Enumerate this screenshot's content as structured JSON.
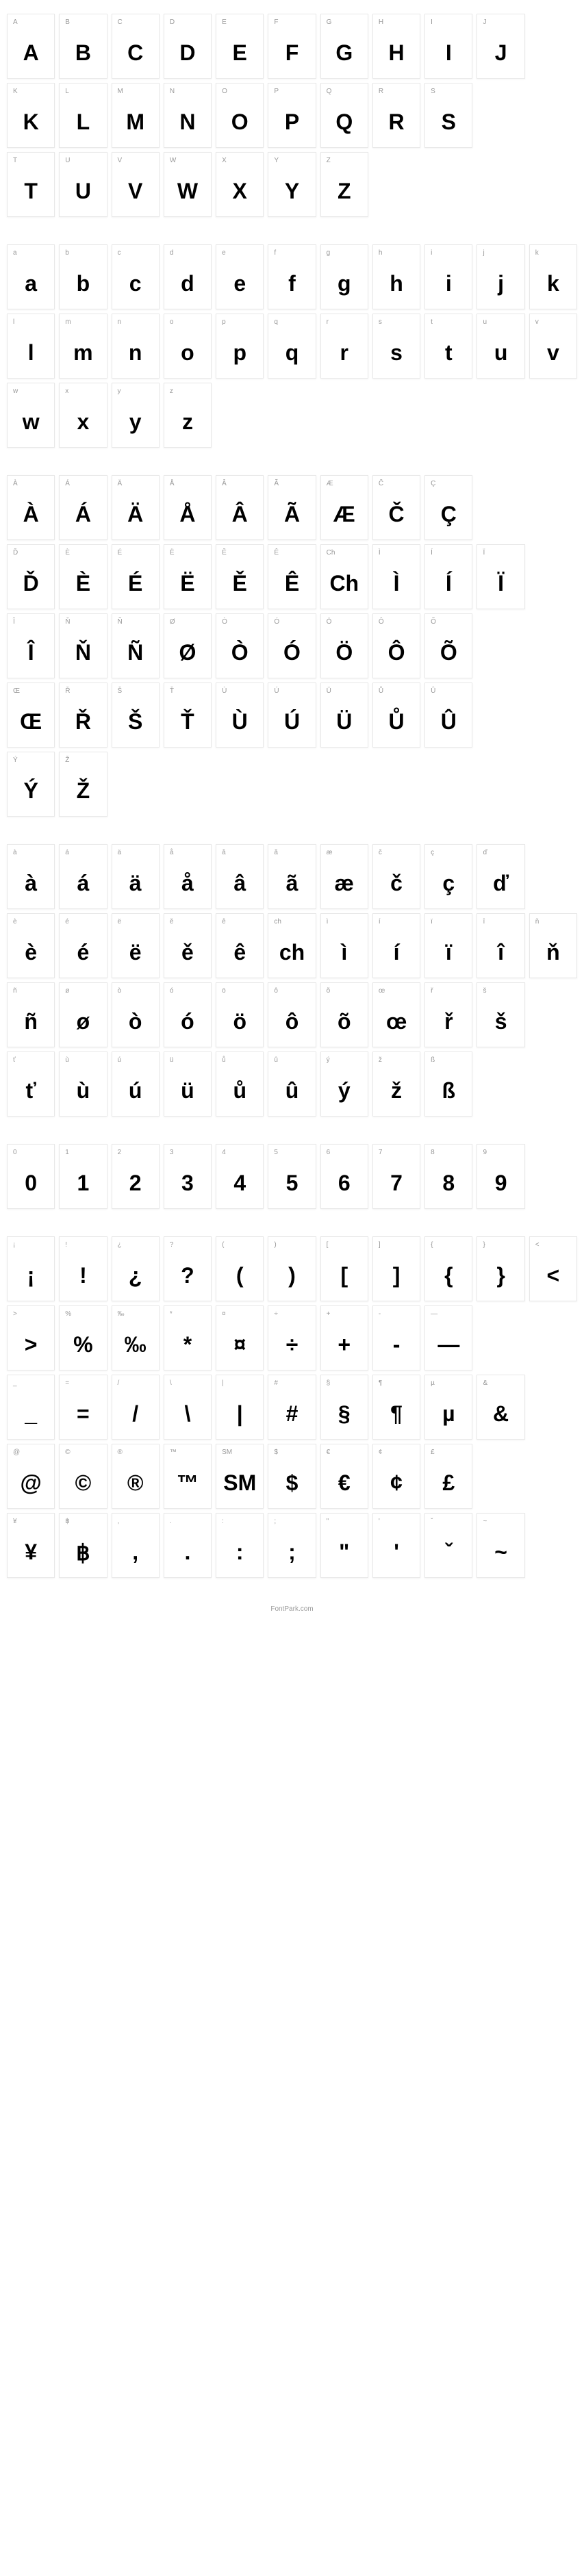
{
  "footer": "FontPark.com",
  "sections": [
    {
      "cells": [
        {
          "label": "A",
          "glyph": "A"
        },
        {
          "label": "B",
          "glyph": "B"
        },
        {
          "label": "C",
          "glyph": "C"
        },
        {
          "label": "D",
          "glyph": "D"
        },
        {
          "label": "E",
          "glyph": "E"
        },
        {
          "label": "F",
          "glyph": "F"
        },
        {
          "label": "G",
          "glyph": "G"
        },
        {
          "label": "H",
          "glyph": "H"
        },
        {
          "label": "I",
          "glyph": "I"
        },
        {
          "label": "J",
          "glyph": "J"
        },
        {
          "empty": true
        },
        {
          "label": "K",
          "glyph": "K"
        },
        {
          "label": "L",
          "glyph": "L"
        },
        {
          "label": "M",
          "glyph": "M"
        },
        {
          "label": "N",
          "glyph": "N"
        },
        {
          "label": "O",
          "glyph": "O"
        },
        {
          "label": "P",
          "glyph": "P"
        },
        {
          "label": "Q",
          "glyph": "Q"
        },
        {
          "label": "R",
          "glyph": "R"
        },
        {
          "label": "S",
          "glyph": "S"
        },
        {
          "empty": true
        },
        {
          "empty": true
        },
        {
          "label": "T",
          "glyph": "T"
        },
        {
          "label": "U",
          "glyph": "U"
        },
        {
          "label": "V",
          "glyph": "V"
        },
        {
          "label": "W",
          "glyph": "W"
        },
        {
          "label": "X",
          "glyph": "X"
        },
        {
          "label": "Y",
          "glyph": "Y"
        },
        {
          "label": "Z",
          "glyph": "Z"
        },
        {
          "empty": true
        },
        {
          "empty": true
        },
        {
          "empty": true
        },
        {
          "empty": true
        }
      ]
    },
    {
      "cells": [
        {
          "label": "a",
          "glyph": "a"
        },
        {
          "label": "b",
          "glyph": "b"
        },
        {
          "label": "c",
          "glyph": "c"
        },
        {
          "label": "d",
          "glyph": "d"
        },
        {
          "label": "e",
          "glyph": "e"
        },
        {
          "label": "f",
          "glyph": "f"
        },
        {
          "label": "g",
          "glyph": "g"
        },
        {
          "label": "h",
          "glyph": "h"
        },
        {
          "label": "i",
          "glyph": "i"
        },
        {
          "label": "j",
          "glyph": "j"
        },
        {
          "label": "k",
          "glyph": "k"
        },
        {
          "label": "l",
          "glyph": "l"
        },
        {
          "label": "m",
          "glyph": "m"
        },
        {
          "label": "n",
          "glyph": "n"
        },
        {
          "label": "o",
          "glyph": "o"
        },
        {
          "label": "p",
          "glyph": "p"
        },
        {
          "label": "q",
          "glyph": "q"
        },
        {
          "label": "r",
          "glyph": "r"
        },
        {
          "label": "s",
          "glyph": "s"
        },
        {
          "label": "t",
          "glyph": "t"
        },
        {
          "label": "u",
          "glyph": "u"
        },
        {
          "label": "v",
          "glyph": "v"
        },
        {
          "label": "w",
          "glyph": "w"
        },
        {
          "label": "x",
          "glyph": "x"
        },
        {
          "label": "y",
          "glyph": "y"
        },
        {
          "label": "z",
          "glyph": "z"
        },
        {
          "empty": true
        },
        {
          "empty": true
        },
        {
          "empty": true
        },
        {
          "empty": true
        },
        {
          "empty": true
        },
        {
          "empty": true
        },
        {
          "empty": true
        }
      ]
    },
    {
      "cells": [
        {
          "label": "À",
          "glyph": "À"
        },
        {
          "label": "Á",
          "glyph": "Á"
        },
        {
          "label": "Ä",
          "glyph": "Ä"
        },
        {
          "label": "Å",
          "glyph": "Å"
        },
        {
          "label": "Â",
          "glyph": "Â"
        },
        {
          "label": "Ã",
          "glyph": "Ã"
        },
        {
          "label": "Æ",
          "glyph": "Æ"
        },
        {
          "label": "Č",
          "glyph": "Č"
        },
        {
          "label": "Ç",
          "glyph": "Ç"
        },
        {
          "empty": true
        },
        {
          "empty": true
        },
        {
          "label": "Ď",
          "glyph": "Ď"
        },
        {
          "label": "È",
          "glyph": "È"
        },
        {
          "label": "É",
          "glyph": "É"
        },
        {
          "label": "Ë",
          "glyph": "Ë"
        },
        {
          "label": "Ě",
          "glyph": "Ě"
        },
        {
          "label": "Ê",
          "glyph": "Ê"
        },
        {
          "label": "Ch",
          "glyph": "Ch"
        },
        {
          "label": "Ì",
          "glyph": "Ì"
        },
        {
          "label": "Í",
          "glyph": "Í"
        },
        {
          "label": "Ï",
          "glyph": "Ï"
        },
        {
          "empty": true
        },
        {
          "label": "Î",
          "glyph": "Î"
        },
        {
          "label": "Ň",
          "glyph": "Ň"
        },
        {
          "label": "Ñ",
          "glyph": "Ñ"
        },
        {
          "label": "Ø",
          "glyph": "Ø"
        },
        {
          "label": "Ò",
          "glyph": "Ò"
        },
        {
          "label": "Ó",
          "glyph": "Ó"
        },
        {
          "label": "Ö",
          "glyph": "Ö"
        },
        {
          "label": "Ô",
          "glyph": "Ô"
        },
        {
          "label": "Õ",
          "glyph": "Õ"
        },
        {
          "empty": true
        },
        {
          "empty": true
        },
        {
          "label": "Œ",
          "glyph": "Œ"
        },
        {
          "label": "Ř",
          "glyph": "Ř"
        },
        {
          "label": "Š",
          "glyph": "Š"
        },
        {
          "label": "Ť",
          "glyph": "Ť"
        },
        {
          "label": "Ù",
          "glyph": "Ù"
        },
        {
          "label": "Ú",
          "glyph": "Ú"
        },
        {
          "label": "Ü",
          "glyph": "Ü"
        },
        {
          "label": "Ů",
          "glyph": "Ů"
        },
        {
          "label": "Û",
          "glyph": "Û"
        },
        {
          "empty": true
        },
        {
          "empty": true
        },
        {
          "label": "Ý",
          "glyph": "Ý"
        },
        {
          "label": "Ž",
          "glyph": "Ž"
        },
        {
          "empty": true
        },
        {
          "empty": true
        },
        {
          "empty": true
        },
        {
          "empty": true
        },
        {
          "empty": true
        },
        {
          "empty": true
        },
        {
          "empty": true
        },
        {
          "empty": true
        },
        {
          "empty": true
        }
      ]
    },
    {
      "cells": [
        {
          "label": "à",
          "glyph": "à"
        },
        {
          "label": "á",
          "glyph": "á"
        },
        {
          "label": "ä",
          "glyph": "ä"
        },
        {
          "label": "å",
          "glyph": "å"
        },
        {
          "label": "â",
          "glyph": "â"
        },
        {
          "label": "ã",
          "glyph": "ã"
        },
        {
          "label": "æ",
          "glyph": "æ"
        },
        {
          "label": "č",
          "glyph": "č"
        },
        {
          "label": "ç",
          "glyph": "ç"
        },
        {
          "label": "ď",
          "glyph": "ď"
        },
        {
          "empty": true
        },
        {
          "label": "è",
          "glyph": "è"
        },
        {
          "label": "é",
          "glyph": "é"
        },
        {
          "label": "ë",
          "glyph": "ë"
        },
        {
          "label": "ě",
          "glyph": "ě"
        },
        {
          "label": "ê",
          "glyph": "ê"
        },
        {
          "label": "ch",
          "glyph": "ch"
        },
        {
          "label": "ì",
          "glyph": "ì"
        },
        {
          "label": "í",
          "glyph": "í"
        },
        {
          "label": "ï",
          "glyph": "ï"
        },
        {
          "label": "î",
          "glyph": "î"
        },
        {
          "label": "ň",
          "glyph": "ň"
        },
        {
          "label": "ñ",
          "glyph": "ñ"
        },
        {
          "label": "ø",
          "glyph": "ø"
        },
        {
          "label": "ò",
          "glyph": "ò"
        },
        {
          "label": "ó",
          "glyph": "ó"
        },
        {
          "label": "ö",
          "glyph": "ö"
        },
        {
          "label": "ô",
          "glyph": "ô"
        },
        {
          "label": "õ",
          "glyph": "õ"
        },
        {
          "label": "œ",
          "glyph": "œ"
        },
        {
          "label": "ř",
          "glyph": "ř"
        },
        {
          "label": "š",
          "glyph": "š"
        },
        {
          "empty": true
        },
        {
          "label": "ť",
          "glyph": "ť"
        },
        {
          "label": "ù",
          "glyph": "ù"
        },
        {
          "label": "ú",
          "glyph": "ú"
        },
        {
          "label": "ü",
          "glyph": "ü"
        },
        {
          "label": "ů",
          "glyph": "ů"
        },
        {
          "label": "û",
          "glyph": "û"
        },
        {
          "label": "ý",
          "glyph": "ý"
        },
        {
          "label": "ž",
          "glyph": "ž"
        },
        {
          "label": "ß",
          "glyph": "ß"
        },
        {
          "empty": true
        },
        {
          "empty": true
        }
      ]
    },
    {
      "cells": [
        {
          "label": "0",
          "glyph": "0"
        },
        {
          "label": "1",
          "glyph": "1"
        },
        {
          "label": "2",
          "glyph": "2"
        },
        {
          "label": "3",
          "glyph": "3"
        },
        {
          "label": "4",
          "glyph": "4"
        },
        {
          "label": "5",
          "glyph": "5"
        },
        {
          "label": "6",
          "glyph": "6"
        },
        {
          "label": "7",
          "glyph": "7"
        },
        {
          "label": "8",
          "glyph": "8"
        },
        {
          "label": "9",
          "glyph": "9"
        },
        {
          "empty": true
        }
      ]
    },
    {
      "cells": [
        {
          "label": "¡",
          "glyph": "¡"
        },
        {
          "label": "!",
          "glyph": "!"
        },
        {
          "label": "¿",
          "glyph": "¿"
        },
        {
          "label": "?",
          "glyph": "?"
        },
        {
          "label": "(",
          "glyph": "("
        },
        {
          "label": ")",
          "glyph": ")"
        },
        {
          "label": "[",
          "glyph": "["
        },
        {
          "label": "]",
          "glyph": "]"
        },
        {
          "label": "{",
          "glyph": "{"
        },
        {
          "label": "}",
          "glyph": "}"
        },
        {
          "label": "<",
          "glyph": "<"
        },
        {
          "label": ">",
          "glyph": ">"
        },
        {
          "label": "%",
          "glyph": "%"
        },
        {
          "label": "‰",
          "glyph": "‰"
        },
        {
          "label": "*",
          "glyph": "*"
        },
        {
          "label": "¤",
          "glyph": "¤"
        },
        {
          "label": "÷",
          "glyph": "÷"
        },
        {
          "label": "+",
          "glyph": "+"
        },
        {
          "label": "-",
          "glyph": "-"
        },
        {
          "label": "—",
          "glyph": "—"
        },
        {
          "empty": true
        },
        {
          "empty": true
        },
        {
          "label": "_",
          "glyph": "_"
        },
        {
          "label": "=",
          "glyph": "="
        },
        {
          "label": "/",
          "glyph": "/"
        },
        {
          "label": "\\",
          "glyph": "\\"
        },
        {
          "label": "|",
          "glyph": "|"
        },
        {
          "label": "#",
          "glyph": "#"
        },
        {
          "label": "§",
          "glyph": "§"
        },
        {
          "label": "¶",
          "glyph": "¶"
        },
        {
          "label": "µ",
          "glyph": "µ"
        },
        {
          "label": "&",
          "glyph": "&"
        },
        {
          "empty": true
        },
        {
          "label": "@",
          "glyph": "@"
        },
        {
          "label": "©",
          "glyph": "©"
        },
        {
          "label": "®",
          "glyph": "®"
        },
        {
          "label": "™",
          "glyph": "™"
        },
        {
          "label": "SM",
          "glyph": "SM"
        },
        {
          "label": "$",
          "glyph": "$"
        },
        {
          "label": "€",
          "glyph": "€"
        },
        {
          "label": "¢",
          "glyph": "¢"
        },
        {
          "label": "£",
          "glyph": "£"
        },
        {
          "empty": true
        },
        {
          "empty": true
        },
        {
          "label": "¥",
          "glyph": "¥"
        },
        {
          "label": "฿",
          "glyph": "฿"
        },
        {
          "label": ",",
          "glyph": ","
        },
        {
          "label": ".",
          "glyph": "."
        },
        {
          "label": ":",
          "glyph": ":"
        },
        {
          "label": ";",
          "glyph": ";"
        },
        {
          "label": "\"",
          "glyph": "\""
        },
        {
          "label": "'",
          "glyph": "'"
        },
        {
          "label": "ˇ",
          "glyph": "ˇ"
        },
        {
          "label": "~",
          "glyph": "~"
        },
        {
          "empty": true
        }
      ]
    }
  ]
}
